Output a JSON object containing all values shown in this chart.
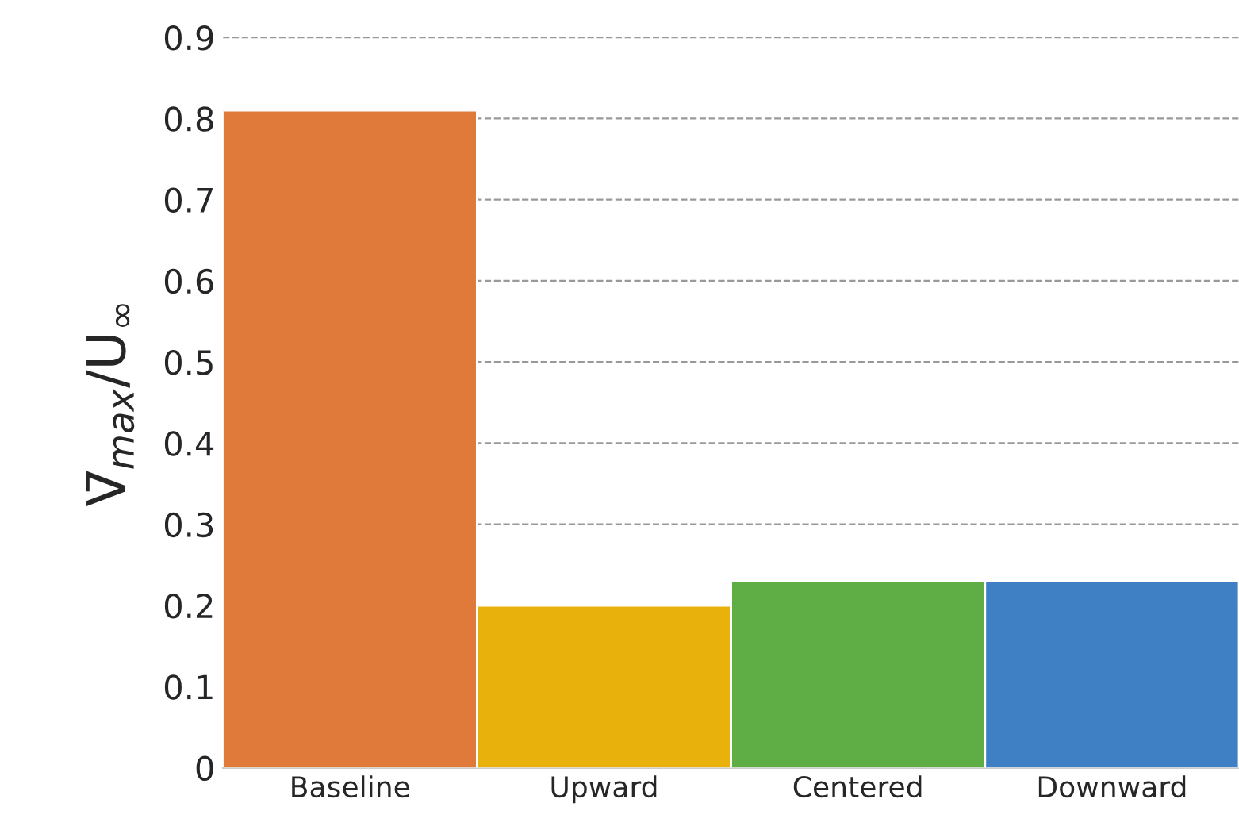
{
  "chart_data": {
    "type": "bar",
    "ylabel": "V̄$_{max}$/U$_{∞}$",
    "categories": [
      "Baseline",
      "Upward",
      "Centered",
      "Downward"
    ],
    "values": [
      0.81,
      0.2,
      0.23,
      0.23
    ],
    "colors": [
      "#e07a3a",
      "#e8b10c",
      "#5fae45",
      "#3f80c4"
    ],
    "ylim": [
      0,
      0.9
    ],
    "yticks": [
      {
        "value": 0,
        "label": "0"
      },
      0.1,
      0.2,
      0.3,
      0.4,
      0.5,
      0.6,
      0.7,
      0.8,
      0.9
    ],
    "grid": "y",
    "line_style": "dashed"
  }
}
